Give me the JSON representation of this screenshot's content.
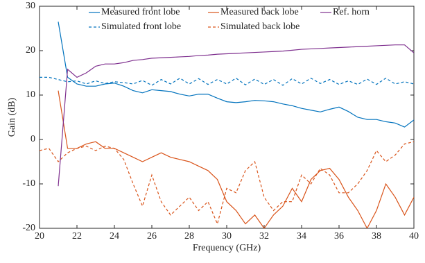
{
  "chart_data": {
    "type": "line",
    "xlabel": "Frequency (GHz)",
    "ylabel": "Gain (dB)",
    "x": [
      20,
      20.5,
      21,
      21.5,
      22,
      22.5,
      23,
      23.5,
      24,
      24.5,
      25,
      25.5,
      26,
      26.5,
      27,
      27.5,
      28,
      28.5,
      29,
      29.5,
      30,
      30.5,
      31,
      31.5,
      32,
      32.5,
      33,
      33.5,
      34,
      34.5,
      35,
      35.5,
      36,
      36.5,
      37,
      37.5,
      38,
      38.5,
      39,
      39.5,
      40
    ],
    "xlim": [
      20,
      40
    ],
    "xticks": [
      20,
      22,
      24,
      26,
      28,
      30,
      32,
      34,
      36,
      38,
      40
    ],
    "ylim": [
      -20,
      30
    ],
    "yticks": [
      -20,
      -10,
      0,
      10,
      20,
      30
    ],
    "grid": false,
    "legend": "top",
    "series": [
      {
        "name": "Measured front lobe",
        "color": "#0072BD",
        "linestyle": "solid",
        "values": [
          null,
          null,
          26.5,
          14,
          12.5,
          12,
          12,
          12.5,
          12.7,
          12,
          11,
          10.5,
          11.2,
          11,
          10.8,
          10.2,
          9.8,
          10.2,
          10.2,
          9.3,
          8.5,
          8.3,
          8.5,
          8.8,
          8.7,
          8.5,
          8,
          7.6,
          7,
          6.6,
          6.2,
          6.8,
          7.3,
          6.3,
          5,
          4.5,
          4.5,
          4,
          3.7,
          2.8,
          4.4
        ]
      },
      {
        "name": "Simulated front lobe",
        "color": "#0072BD",
        "linestyle": "dashed",
        "values": [
          14,
          14,
          13.5,
          13,
          13.2,
          12.5,
          13.2,
          12.6,
          13,
          12.8,
          12.5,
          13.3,
          12.2,
          13.5,
          12.5,
          13.8,
          12.5,
          13.7,
          12.4,
          13.5,
          12.5,
          13.8,
          12.3,
          13.6,
          12.4,
          13.5,
          12.2,
          13.7,
          12.5,
          13.8,
          12.6,
          13.5,
          12.4,
          13.2,
          12.4,
          13.6,
          12.4,
          13.8,
          12.5,
          13,
          12.5
        ]
      },
      {
        "name": "Measured back lobe",
        "color": "#D95319",
        "linestyle": "solid",
        "values": [
          null,
          null,
          11,
          -2,
          -2,
          -1,
          -0.5,
          -2,
          -2,
          -3,
          -4,
          -5,
          -4,
          -3,
          -4,
          -4.5,
          -5,
          -6,
          -7,
          -9,
          -14,
          -16,
          -19,
          -17,
          -20,
          -17,
          -15,
          -11,
          -14,
          -9,
          -7,
          -6.5,
          -9,
          -13,
          -16,
          -20,
          -16,
          -10,
          -13,
          -17,
          -13
        ]
      },
      {
        "name": "Simulated back lobe",
        "color": "#D95319",
        "linestyle": "dashed",
        "values": [
          -2.5,
          -2,
          -5,
          -3,
          -2,
          -1.5,
          -2.5,
          -1.5,
          -2,
          -4.5,
          -10,
          -15,
          -8,
          -14,
          -17,
          -15,
          -13,
          -16,
          -14,
          -19,
          -11,
          -12,
          -7,
          -5,
          -13,
          -16,
          -14,
          -14,
          -8,
          -10,
          -6.5,
          -8,
          -12,
          -12,
          -10,
          -7,
          -2.5,
          -5,
          -3.5,
          -1,
          -0.5
        ]
      },
      {
        "name": "Ref. horn",
        "color": "#7E2F8E",
        "linestyle": "solid",
        "values": [
          null,
          null,
          -10.5,
          15.8,
          14,
          15,
          16.5,
          17,
          17,
          17.3,
          17.8,
          18,
          18.3,
          18.4,
          18.5,
          18.6,
          18.7,
          18.9,
          19,
          19.2,
          19.3,
          19.4,
          19.5,
          19.6,
          19.7,
          19.8,
          19.9,
          20.1,
          20.3,
          20.4,
          20.5,
          20.6,
          20.7,
          20.8,
          20.9,
          21,
          21.1,
          21.2,
          21.3,
          21.3,
          19.5
        ]
      }
    ]
  }
}
